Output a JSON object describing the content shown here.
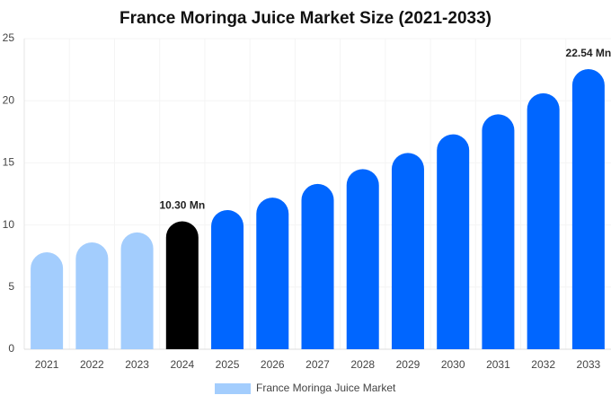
{
  "chart_data": {
    "type": "bar",
    "title": "France Moringa Juice Market Size (2021-2033)",
    "categories": [
      "2021",
      "2022",
      "2023",
      "2024",
      "2025",
      "2026",
      "2027",
      "2028",
      "2029",
      "2030",
      "2031",
      "2032",
      "2033"
    ],
    "series": [
      {
        "name": "France Moringa Juice Market",
        "values": [
          7.8,
          8.6,
          9.4,
          10.3,
          11.2,
          12.2,
          13.3,
          14.5,
          15.8,
          17.3,
          18.9,
          20.6,
          22.54
        ],
        "value_labels": [
          null,
          null,
          null,
          "10.30 Mn",
          null,
          null,
          null,
          null,
          null,
          null,
          null,
          null,
          "22.54 Mn"
        ],
        "colors": [
          "#a3cdfd",
          "#a3cdfd",
          "#a3cdfd",
          "#000000",
          "#0066ff",
          "#0066ff",
          "#0066ff",
          "#0066ff",
          "#0066ff",
          "#0066ff",
          "#0066ff",
          "#0066ff",
          "#0066ff"
        ]
      }
    ],
    "legend_color": "#a3cdfd",
    "ylim": [
      0,
      25
    ],
    "yticks": [
      0,
      5,
      10,
      15,
      20,
      25
    ],
    "grid": true
  }
}
